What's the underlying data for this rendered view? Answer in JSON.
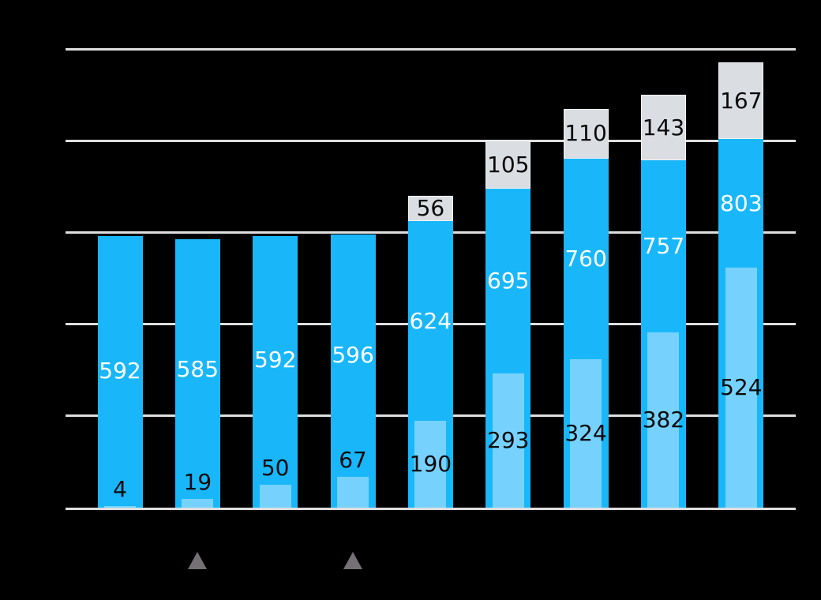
{
  "chart_data": {
    "type": "bar",
    "subtype": "total-with-baseline-overlay-and-stacked-top",
    "title": "",
    "xlabel": "",
    "ylabel": "",
    "axis_tick_labels_visible": false,
    "bar_count": 9,
    "categories": [
      "",
      "",
      "",
      "",
      "",
      "",
      "",
      "",
      ""
    ],
    "series": [
      {
        "name": "total",
        "role": "main-bar-from-zero",
        "color": "#19B7FA",
        "label_color": "#FFFFFF",
        "values": [
          592,
          585,
          592,
          596,
          624,
          695,
          760,
          757,
          803
        ]
      },
      {
        "name": "overlay",
        "role": "inner-bar-from-zero",
        "color": "#76D2FD",
        "label_color": "#0A0A0A",
        "values": [
          4,
          19,
          50,
          67,
          190,
          293,
          324,
          382,
          524
        ]
      },
      {
        "name": "top",
        "role": "stacked-on-total",
        "color": "#DADDE2",
        "label_color": "#0A0A0A",
        "values": [
          null,
          null,
          null,
          null,
          56,
          105,
          110,
          143,
          167
        ]
      }
    ],
    "ylim": [
      0,
      1000
    ],
    "gridline_step": 200,
    "grid": "horizontal",
    "legend": "none",
    "markers": {
      "symbol": "triangle-up",
      "color": "#747074",
      "under_bar_numbers": [
        2,
        4
      ]
    },
    "colors": {
      "background": "#000000",
      "gridline": "#DEDEDE"
    }
  }
}
